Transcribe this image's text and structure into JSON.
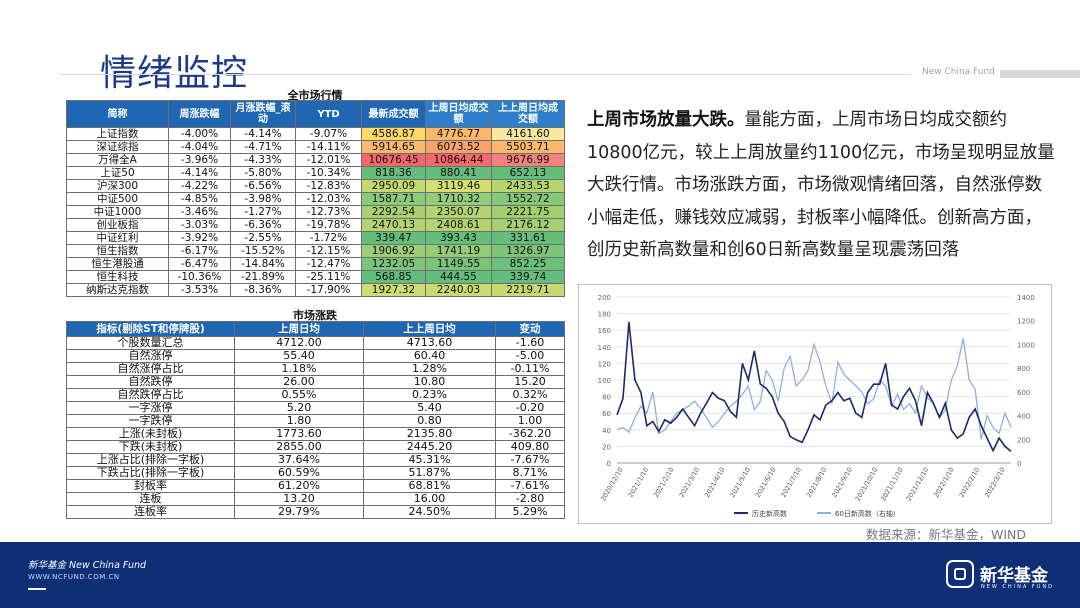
{
  "page": {
    "title": "情绪监控",
    "top_brand": "New China Fund"
  },
  "market_table": {
    "caption": "全市场行情",
    "headers": [
      "简称",
      "周涨跌幅",
      "月涨跌幅_滚动",
      "YTD",
      "最新成交额",
      "上周日均成交额",
      "上上周日均成交额"
    ],
    "rows": [
      {
        "name": "上证指数",
        "week": "-4.00%",
        "month": "-4.14%",
        "ytd": "-9.07%",
        "latest": "4586.87",
        "last_week": "4776.77",
        "prev_week": "4161.60",
        "bg": [
          "#ffd966",
          "#fbb86b",
          "#f9e79f"
        ]
      },
      {
        "name": "深证综指",
        "week": "-4.04%",
        "month": "-4.71%",
        "ytd": "-14.11%",
        "latest": "5914.65",
        "last_week": "6073.52",
        "prev_week": "5503.71",
        "bg": [
          "#fbb86b",
          "#f8a26c",
          "#fbb86b"
        ]
      },
      {
        "name": "万得全A",
        "week": "-3.96%",
        "month": "-4.33%",
        "ytd": "-12.01%",
        "latest": "10676.45",
        "last_week": "10864.44",
        "prev_week": "9676.99",
        "bg": [
          "#f4676b",
          "#f8696b",
          "#f4837b"
        ]
      },
      {
        "name": "上证50",
        "week": "-4.14%",
        "month": "-5.80%",
        "ytd": "-10.34%",
        "latest": "818.36",
        "last_week": "880.41",
        "prev_week": "652.13",
        "bg": [
          "#63be7b",
          "#63be7b",
          "#63be7b"
        ]
      },
      {
        "name": "沪深300",
        "week": "-4.22%",
        "month": "-6.56%",
        "ytd": "-12.83%",
        "latest": "2950.09",
        "last_week": "3119.46",
        "prev_week": "2433.53",
        "bg": [
          "#c4d96f",
          "#d6de72",
          "#b5d46d"
        ]
      },
      {
        "name": "中证500",
        "week": "-4.85%",
        "month": "-3.98%",
        "ytd": "-12.03%",
        "latest": "1587.71",
        "last_week": "1710.32",
        "prev_week": "1552.72",
        "bg": [
          "#8ccb76",
          "#92cd77",
          "#86c975"
        ]
      },
      {
        "name": "中证1000",
        "week": "-3.46%",
        "month": "-1.27%",
        "ytd": "-12.73%",
        "latest": "2292.54",
        "last_week": "2350.07",
        "prev_week": "2221.75",
        "bg": [
          "#a8d071",
          "#b2d370",
          "#a2ce72"
        ]
      },
      {
        "name": "创业板指",
        "week": "-3.03%",
        "month": "-6.36%",
        "ytd": "-19.78%",
        "latest": "2470.13",
        "last_week": "2408.61",
        "prev_week": "2176.12",
        "bg": [
          "#b5d46d",
          "#b2d370",
          "#a5cf72"
        ]
      },
      {
        "name": "中证红利",
        "week": "-3.92%",
        "month": "-2.55%",
        "ytd": "-1.72%",
        "latest": "339.47",
        "last_week": "393.43",
        "prev_week": "331.61",
        "bg": [
          "#63be7b",
          "#63be7b",
          "#63be7b"
        ]
      },
      {
        "name": "恒生指数",
        "week": "-6.17%",
        "month": "-15.52%",
        "ytd": "-12.15%",
        "latest": "1906.92",
        "last_week": "1741.19",
        "prev_week": "1326.97",
        "bg": [
          "#9dce73",
          "#93cc75",
          "#7cc478"
        ]
      },
      {
        "name": "恒生港股通",
        "week": "-6.47%",
        "month": "-14.84%",
        "ytd": "-12.47%",
        "latest": "1232.05",
        "last_week": "1149.55",
        "prev_week": "852.25",
        "bg": [
          "#7cc478",
          "#78c378",
          "#6ac07a"
        ]
      },
      {
        "name": "恒生科技",
        "week": "-10.36%",
        "month": "-21.89%",
        "ytd": "-25.11%",
        "latest": "568.85",
        "last_week": "444.55",
        "prev_week": "339.74",
        "bg": [
          "#63be7b",
          "#63be7b",
          "#63be7b"
        ]
      },
      {
        "name": "纳斯达克指数",
        "week": "-3.53%",
        "month": "-8.36%",
        "ytd": "-17.90%",
        "latest": "1927.32",
        "last_week": "2240.03",
        "prev_week": "2219.71",
        "bg": [
          "#d0dc72",
          "#c8da70",
          "#c6d970"
        ]
      }
    ]
  },
  "updown_table": {
    "caption": "市场涨跌",
    "headers": [
      "指标(剔除ST和停牌股)",
      "上周日均",
      "上上周日均",
      "变动"
    ],
    "rows": [
      [
        "个股数量汇总",
        "4712.00",
        "4713.60",
        "-1.60"
      ],
      [
        "自然涨停",
        "55.40",
        "60.40",
        "-5.00"
      ],
      [
        "自然涨停占比",
        "1.18%",
        "1.28%",
        "-0.11%"
      ],
      [
        "自然跌停",
        "26.00",
        "10.80",
        "15.20"
      ],
      [
        "自然跌停占比",
        "0.55%",
        "0.23%",
        "0.32%"
      ],
      [
        "一字涨停",
        "5.20",
        "5.40",
        "-0.20"
      ],
      [
        "一字跌停",
        "1.80",
        "0.80",
        "1.00"
      ],
      [
        "上涨(未封板)",
        "1773.60",
        "2135.80",
        "-362.20"
      ],
      [
        "下跌(未封板)",
        "2855.00",
        "2445.20",
        "409.80"
      ],
      [
        "上涨占比(排除一字板)",
        "37.64%",
        "45.31%",
        "-7.67%"
      ],
      [
        "下跌占比(排除一字板)",
        "60.59%",
        "51.87%",
        "8.71%"
      ],
      [
        "封板率",
        "61.20%",
        "68.81%",
        "-7.61%"
      ],
      [
        "连板",
        "13.20",
        "16.00",
        "-2.80"
      ],
      [
        "连板率",
        "29.79%",
        "24.50%",
        "5.29%"
      ]
    ]
  },
  "commentary": {
    "bold": "上周市场放量大跌。",
    "body": "量能方面，上周市场日均成交额约10800亿元，较上上周放量约1100亿元，市场呈现明显放量大跌行情。市场涨跌方面，市场微观情绪回落，自然涨停数小幅走低，赚钱效应减弱，封板率小幅降低。创新高方面，创历史新高数量和创60日新高数量呈现震荡回落"
  },
  "chart_data": {
    "type": "line",
    "x_labels": [
      "2020/12/10",
      "2021/1/10",
      "2021/2/10",
      "2021/3/10",
      "2021/4/10",
      "2021/5/10",
      "2021/6/10",
      "2021/7/10",
      "2021/8/10",
      "2021/9/10",
      "2021/10/10",
      "2021/11/10",
      "2021/12/10",
      "2022/1/10",
      "2022/2/10",
      "2022/3/10"
    ],
    "y_left": {
      "min": 0,
      "max": 200,
      "ticks": [
        0,
        20,
        40,
        60,
        80,
        100,
        120,
        140,
        160,
        180,
        200
      ]
    },
    "y_right": {
      "min": 0,
      "max": 1400,
      "ticks": [
        0,
        200,
        400,
        600,
        800,
        1000,
        1200,
        1400
      ]
    },
    "series": [
      {
        "name": "历史新高数",
        "axis": "left",
        "color": "#1b2a6b",
        "values": [
          58,
          78,
          170,
          100,
          85,
          45,
          50,
          38,
          52,
          48,
          55,
          65,
          55,
          45,
          60,
          72,
          85,
          78,
          75,
          62,
          55,
          120,
          100,
          135,
          95,
          90,
          80,
          60,
          50,
          32,
          28,
          25,
          40,
          58,
          52,
          70,
          75,
          85,
          75,
          78,
          60,
          55,
          85,
          95,
          95,
          120,
          70,
          65,
          80,
          90,
          75,
          45,
          85,
          72,
          55,
          72,
          40,
          30,
          35,
          55,
          65,
          45,
          30,
          15,
          30,
          20,
          14
        ]
      },
      {
        "name": "60日新高数（右轴）",
        "axis": "right",
        "color": "#8fb0d8",
        "values": [
          280,
          300,
          260,
          380,
          480,
          420,
          600,
          250,
          280,
          350,
          420,
          450,
          480,
          520,
          460,
          380,
          300,
          350,
          420,
          480,
          520,
          580,
          650,
          450,
          520,
          780,
          700,
          520,
          800,
          900,
          650,
          700,
          780,
          1000,
          850,
          650,
          500,
          850,
          750,
          700,
          650,
          600,
          500,
          540,
          700,
          650,
          480,
          580,
          450,
          500,
          420,
          650,
          550,
          500,
          380,
          450,
          700,
          820,
          1050,
          700,
          620,
          200,
          400,
          300,
          250,
          420,
          300
        ]
      }
    ]
  },
  "source": "数据来源：新华基金，WIND",
  "footer": {
    "brand": "新华基金 New China Fund",
    "url": "WWW.NCFUND.COM.CN",
    "logo_text": "新华基金",
    "logo_sub": "NEW CHINA FUND"
  }
}
